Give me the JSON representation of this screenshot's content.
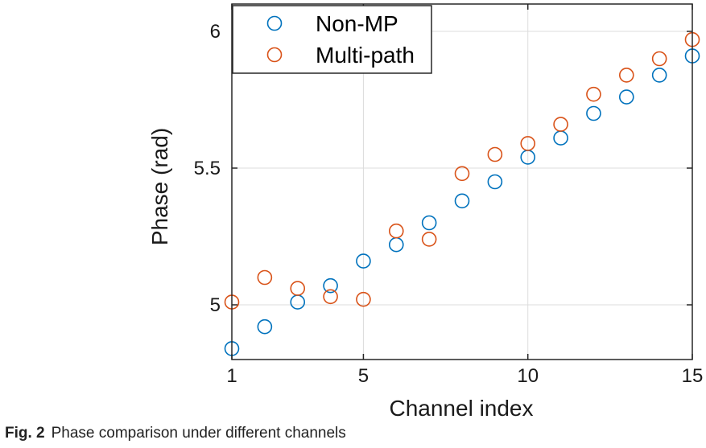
{
  "caption": {
    "label": "Fig. 2",
    "text": "Phase comparison under different channels"
  },
  "colors": {
    "non_mp": "#0072BD",
    "multi_path": "#D95319"
  },
  "chart_data": {
    "type": "scatter",
    "title": "",
    "xlabel": "Channel index",
    "ylabel": "Phase (rad)",
    "xlim": [
      1,
      15
    ],
    "ylim": [
      4.8,
      6.1
    ],
    "xticks": [
      1,
      5,
      10,
      15
    ],
    "xtick_labels": [
      "1",
      "5",
      "10",
      "15"
    ],
    "yticks": [
      5,
      5.5,
      6
    ],
    "ytick_labels": [
      "5",
      "5.5",
      "6"
    ],
    "grid": true,
    "legend_position": "top-left",
    "x": [
      1,
      2,
      3,
      4,
      5,
      6,
      7,
      8,
      9,
      10,
      11,
      12,
      13,
      14,
      15
    ],
    "series": [
      {
        "name": "Non-MP",
        "color": "#0072BD",
        "values": [
          4.84,
          4.92,
          5.01,
          5.07,
          5.16,
          5.22,
          5.3,
          5.38,
          5.45,
          5.54,
          5.61,
          5.7,
          5.76,
          5.84,
          5.91
        ]
      },
      {
        "name": "Multi-path",
        "color": "#D95319",
        "values": [
          5.01,
          5.1,
          5.06,
          5.03,
          5.02,
          5.27,
          5.24,
          5.48,
          5.55,
          5.59,
          5.66,
          5.77,
          5.84,
          5.9,
          5.97
        ]
      }
    ]
  }
}
